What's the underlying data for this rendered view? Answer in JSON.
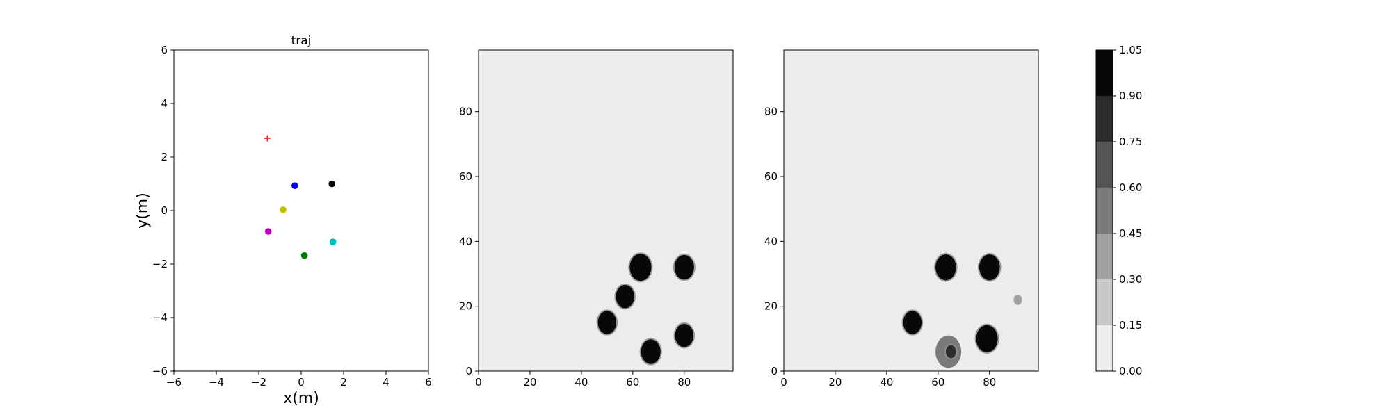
{
  "chart_data": [
    {
      "type": "scatter",
      "title": "traj",
      "xlabel": "x(m)",
      "ylabel": "y(m)",
      "xlim": [
        -6,
        6
      ],
      "ylim": [
        -6,
        6
      ],
      "xticks": [
        -6,
        -4,
        -2,
        0,
        2,
        4,
        6
      ],
      "yticks": [
        -6,
        -4,
        -2,
        0,
        2,
        4,
        6
      ],
      "grid": false,
      "points": [
        {
          "x": -1.6,
          "y": 2.7,
          "color": "#ff0000",
          "marker": "plus"
        },
        {
          "x": -0.3,
          "y": 0.93,
          "color": "#0000ff",
          "marker": "circle"
        },
        {
          "x": 1.45,
          "y": 1.0,
          "color": "#000000",
          "marker": "circle"
        },
        {
          "x": -0.85,
          "y": 0.03,
          "color": "#bfbf00",
          "marker": "circle"
        },
        {
          "x": -1.55,
          "y": -0.78,
          "color": "#bf00bf",
          "marker": "circle"
        },
        {
          "x": 1.5,
          "y": -1.17,
          "color": "#00bfbf",
          "marker": "circle"
        },
        {
          "x": 0.15,
          "y": -1.68,
          "color": "#008000",
          "marker": "circle"
        }
      ]
    },
    {
      "type": "heatmap",
      "title": "",
      "xlim": [
        0,
        99
      ],
      "ylim": [
        0,
        99
      ],
      "xticks": [
        0,
        20,
        40,
        60,
        80
      ],
      "yticks": [
        0,
        20,
        40,
        60,
        80
      ],
      "background_level": 0.0,
      "blobs": [
        {
          "x": 63,
          "y": 32,
          "r": 4.2,
          "level": 1.0
        },
        {
          "x": 80,
          "y": 32,
          "r": 3.8,
          "level": 1.0
        },
        {
          "x": 57,
          "y": 23,
          "r": 3.6,
          "level": 1.0
        },
        {
          "x": 50,
          "y": 15,
          "r": 3.6,
          "level": 1.0
        },
        {
          "x": 80,
          "y": 11,
          "r": 3.6,
          "level": 1.0
        },
        {
          "x": 67,
          "y": 6,
          "r": 3.8,
          "level": 1.0
        }
      ]
    },
    {
      "type": "heatmap",
      "title": "",
      "xlim": [
        0,
        99
      ],
      "ylim": [
        0,
        99
      ],
      "xticks": [
        0,
        20,
        40,
        60,
        80
      ],
      "yticks": [
        0,
        20,
        40,
        60,
        80
      ],
      "background_level": 0.0,
      "blobs": [
        {
          "x": 63,
          "y": 32,
          "r": 4.0,
          "level": 1.0
        },
        {
          "x": 80,
          "y": 32,
          "r": 4.0,
          "level": 1.0
        },
        {
          "x": 50,
          "y": 15,
          "r": 3.6,
          "level": 1.0
        },
        {
          "x": 79,
          "y": 10,
          "r": 4.2,
          "level": 1.0
        },
        {
          "x": 64,
          "y": 6,
          "r": 5.0,
          "level": 0.45
        },
        {
          "x": 65,
          "y": 6,
          "r": 2.0,
          "level": 0.75
        },
        {
          "x": 91,
          "y": 22,
          "r": 1.6,
          "level": 0.3
        }
      ]
    }
  ],
  "colorbar": {
    "ticks": [
      "0.00",
      "0.15",
      "0.30",
      "0.45",
      "0.60",
      "0.75",
      "0.90",
      "1.05"
    ],
    "colors": [
      "#ececec",
      "#c8c8c8",
      "#a0a0a0",
      "#7a7a7a",
      "#555555",
      "#2d2d2d",
      "#080808"
    ]
  }
}
